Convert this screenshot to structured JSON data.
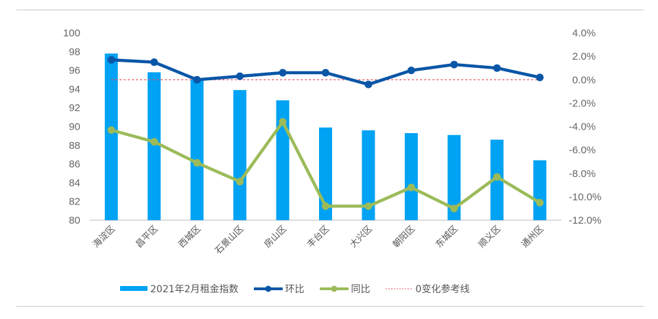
{
  "chart_data": {
    "type": "bar+line",
    "title": "",
    "categories": [
      "海淀区",
      "昌平区",
      "西城区",
      "石景山区",
      "房山区",
      "丰台区",
      "大兴区",
      "朝阳区",
      "东城区",
      "顺义区",
      "通州区"
    ],
    "series": [
      {
        "name": "2021年2月租金指数",
        "type": "bar",
        "axis": "left",
        "color": "#00A2F3",
        "values": [
          97.8,
          95.8,
          95.0,
          93.9,
          92.8,
          89.9,
          89.6,
          89.3,
          89.1,
          88.6,
          86.4
        ]
      },
      {
        "name": "环比",
        "type": "line",
        "axis": "right",
        "color": "#0A56A7",
        "marker": "circle",
        "values": [
          1.7,
          1.5,
          0.0,
          0.3,
          0.6,
          0.6,
          -0.4,
          0.8,
          1.3,
          1.0,
          0.2
        ]
      },
      {
        "name": "同比",
        "type": "line",
        "axis": "right",
        "color": "#9BBB59",
        "marker": "circle",
        "values": [
          -4.3,
          -5.3,
          -7.1,
          -8.7,
          -3.6,
          -10.8,
          -10.8,
          -9.2,
          -11.0,
          -8.3,
          -10.5
        ]
      },
      {
        "name": "0变化参考线",
        "type": "line",
        "axis": "right",
        "color": "#E8505B",
        "dashed": true,
        "values": [
          0,
          0,
          0,
          0,
          0,
          0,
          0,
          0,
          0,
          0,
          0
        ]
      }
    ],
    "left_axis": {
      "min": 80,
      "max": 100,
      "step": 2,
      "ticks": [
        "100",
        "98",
        "96",
        "94",
        "92",
        "90",
        "88",
        "86",
        "84",
        "82",
        "80"
      ]
    },
    "right_axis": {
      "min": -12,
      "max": 4,
      "step": 2,
      "unit": "%",
      "ticks": [
        "4.0%",
        "2.0%",
        "0.0%",
        "-2.0%",
        "-4.0%",
        "-6.0%",
        "-8.0%",
        "-10.0%",
        "-12.0%"
      ]
    },
    "xlabel": "",
    "ylabel": "",
    "ylim": [
      80,
      100
    ],
    "y2lim": [
      -12,
      4
    ],
    "grid": false,
    "legend_position": "bottom"
  },
  "legend": {
    "bar": "2021年2月租金指数",
    "mom": "环比",
    "yoy": "同比",
    "ref": "0变化参考线"
  }
}
